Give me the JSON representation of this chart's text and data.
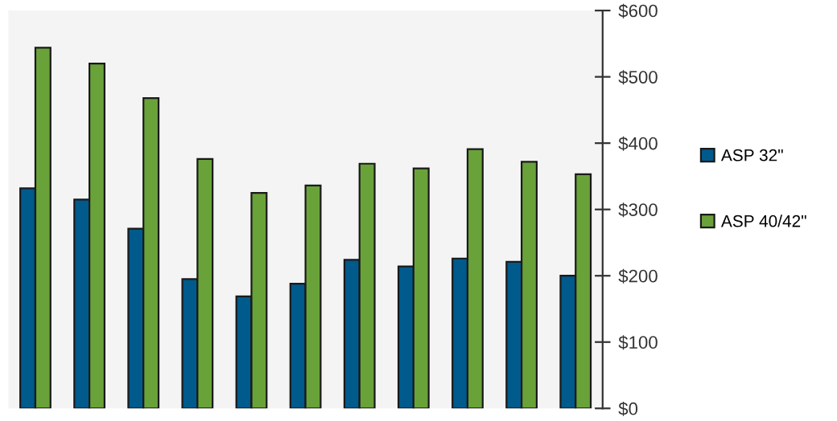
{
  "chart_data": {
    "type": "bar",
    "categories": [
      null,
      null,
      null,
      null,
      null,
      null,
      null,
      null,
      null,
      null,
      null
    ],
    "series": [
      {
        "name": "ASP 32\"",
        "color": "#005a8c",
        "values": [
          332,
          315,
          271,
          195,
          169,
          188,
          224,
          214,
          226,
          221,
          200
        ]
      },
      {
        "name": "ASP 40/42\"",
        "color": "#6aa23a",
        "values": [
          544,
          520,
          468,
          376,
          325,
          336,
          369,
          362,
          391,
          372,
          353
        ]
      }
    ],
    "ylim": [
      0,
      600
    ],
    "yticks": [
      {
        "value": 0,
        "label": "$0"
      },
      {
        "value": 100,
        "label": "$100"
      },
      {
        "value": 200,
        "label": "$200"
      },
      {
        "value": 300,
        "label": "$300"
      },
      {
        "value": 400,
        "label": "$400"
      },
      {
        "value": 500,
        "label": "$500"
      },
      {
        "value": 600,
        "label": "$600"
      }
    ],
    "grid": false,
    "legend": "right"
  }
}
